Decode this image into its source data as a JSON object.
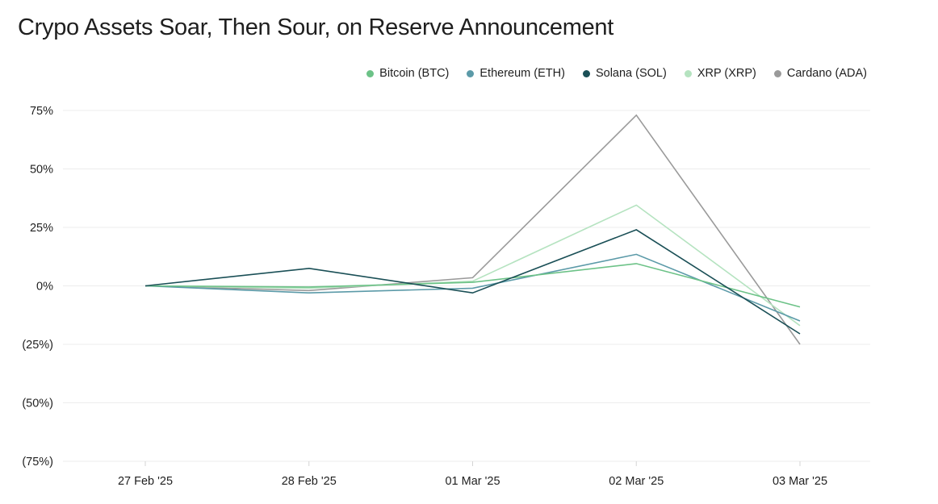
{
  "title": "Crypo Assets Soar, Then Sour, on Reserve Announcement",
  "chart_data": {
    "type": "line",
    "title": "Crypo Assets Soar, Then Sour, on Reserve Announcement",
    "xlabel": "",
    "ylabel": "",
    "x": [
      "27 Feb '25",
      "28 Feb '25",
      "01 Mar '25",
      "02 Mar '25",
      "03 Mar '25"
    ],
    "ylim": [
      -75,
      75
    ],
    "yticks": [
      75,
      50,
      25,
      0,
      -25,
      -50,
      -75
    ],
    "ytick_labels": [
      "75%",
      "50%",
      "25%",
      "0%",
      "(25%)",
      "(50%)",
      "(75%)"
    ],
    "grid": true,
    "legend_position": "top-right",
    "series": [
      {
        "name": "Bitcoin (BTC)",
        "color": "#6cc287",
        "values": [
          0,
          -0.5,
          1.5,
          9.5,
          -9
        ]
      },
      {
        "name": "Ethereum (ETH)",
        "color": "#5b9aa8",
        "values": [
          0,
          -3,
          -1,
          13.5,
          -15
        ]
      },
      {
        "name": "Solana (SOL)",
        "color": "#1a4f56",
        "values": [
          0,
          7.5,
          -3,
          24,
          -20.5
        ]
      },
      {
        "name": "XRP (XRP)",
        "color": "#b5e3c0",
        "values": [
          0,
          -1,
          2,
          34.5,
          -17
        ]
      },
      {
        "name": "Cardano (ADA)",
        "color": "#9a9a9a",
        "values": [
          0,
          -2,
          3.5,
          73,
          -25
        ]
      }
    ]
  }
}
